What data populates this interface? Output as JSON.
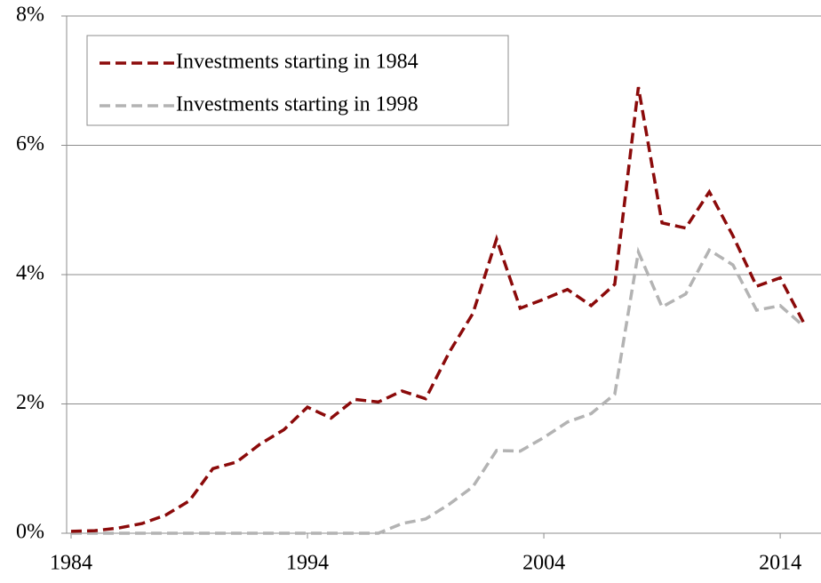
{
  "chart_data": {
    "type": "line",
    "x": [
      1984,
      1985,
      1986,
      1987,
      1988,
      1989,
      1990,
      1991,
      1992,
      1993,
      1994,
      1995,
      1996,
      1997,
      1998,
      1999,
      2000,
      2001,
      2002,
      2003,
      2004,
      2005,
      2006,
      2007,
      2008,
      2009,
      2010,
      2011,
      2012,
      2013,
      2014,
      2015
    ],
    "series": [
      {
        "name": "Investments starting in 1984",
        "color": "#8b0a0a",
        "values": [
          0.03,
          0.04,
          0.08,
          0.15,
          0.28,
          0.5,
          1.0,
          1.1,
          1.38,
          1.6,
          1.95,
          1.78,
          2.07,
          2.03,
          2.2,
          2.08,
          2.8,
          3.4,
          4.55,
          3.48,
          3.62,
          3.77,
          3.52,
          3.85,
          6.9,
          4.8,
          4.72,
          5.28,
          4.6,
          3.82,
          3.95,
          3.25
        ]
      },
      {
        "name": "Investments starting in 1998",
        "color": "#b3b3b3",
        "values": [
          0,
          0,
          0,
          0,
          0,
          0,
          0,
          0,
          0,
          0,
          0,
          0,
          0,
          0,
          0.15,
          0.22,
          0.45,
          0.72,
          1.28,
          1.27,
          1.48,
          1.72,
          1.85,
          2.15,
          4.35,
          3.5,
          3.7,
          4.38,
          4.15,
          3.45,
          3.52,
          3.2
        ]
      }
    ],
    "xlim": [
      1984,
      2015.5
    ],
    "xticks": [
      1984,
      1994,
      2004,
      2014
    ],
    "ylim": [
      0,
      8
    ],
    "yticks": [
      {
        "value": 0,
        "label": "0%"
      },
      {
        "value": 2,
        "label": "2%"
      },
      {
        "value": 4,
        "label": "4%"
      },
      {
        "value": 6,
        "label": "6%"
      },
      {
        "value": 8,
        "label": "8%"
      }
    ],
    "grid": true,
    "legend": "upper left"
  }
}
